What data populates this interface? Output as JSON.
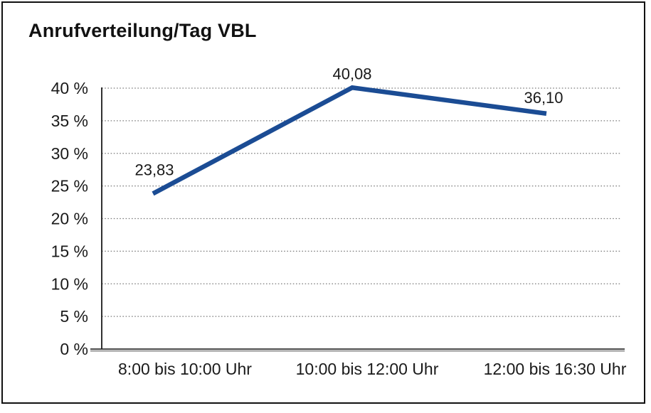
{
  "chart_data": {
    "type": "line",
    "title": "Anrufverteilung/Tag VBL",
    "categories": [
      "8:00 bis 10:00 Uhr",
      "10:00 bis 12:00 Uhr",
      "12:00 bis 16:30 Uhr"
    ],
    "values": [
      23.83,
      40.08,
      36.1
    ],
    "value_labels": [
      "23,83",
      "40,08",
      "36,10"
    ],
    "series_name": "Anrufverteilung/Tag VBL",
    "xlabel": "",
    "ylabel": "",
    "ylim": [
      0,
      40
    ],
    "y_step": 5,
    "y_tick_labels": [
      "0 %",
      "5 %",
      "10 %",
      "15 %",
      "20 %",
      "25 %",
      "30 %",
      "35 %",
      "40 %"
    ],
    "grid": "dotted-horizontal",
    "legend_position": "none",
    "colors": {
      "line": "#1b4c94",
      "text": "#1a1a1a",
      "grid": "#7d7d7d",
      "axis": "#1a1a1a",
      "axis_shadow": "#a3a3a3",
      "frame": "#111111",
      "background": "#ffffff"
    }
  }
}
